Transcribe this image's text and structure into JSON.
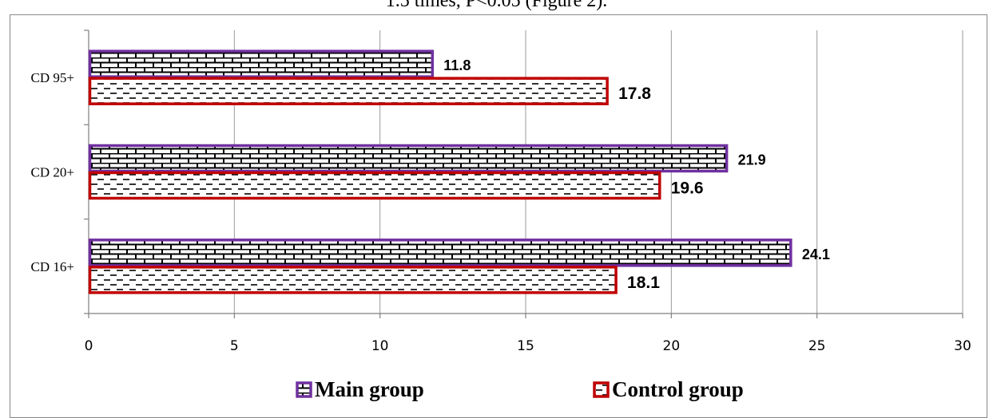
{
  "caption": "1.5 times, P<0.05 (Figure 2).",
  "colors": {
    "main": "#7030A0",
    "control": "#C00000",
    "grid": "#999999",
    "axis": "#808080"
  },
  "chart_data": {
    "type": "bar",
    "orientation": "horizontal",
    "categories": [
      "CD 95+",
      "CD 20+",
      "CD 16+"
    ],
    "series": [
      {
        "name": "Main group",
        "values": [
          11.8,
          21.9,
          24.1
        ]
      },
      {
        "name": "Control group",
        "values": [
          17.8,
          19.6,
          18.1
        ]
      }
    ],
    "value_labels": {
      "main": [
        "11.8",
        "21.9",
        "24.1"
      ],
      "control": [
        "17.8",
        "19.6",
        "18.1"
      ]
    },
    "xlim": [
      0,
      30
    ],
    "xticks": [
      0,
      5,
      10,
      15,
      20,
      25,
      30
    ],
    "grid": "vertical",
    "legend_position": "bottom"
  }
}
